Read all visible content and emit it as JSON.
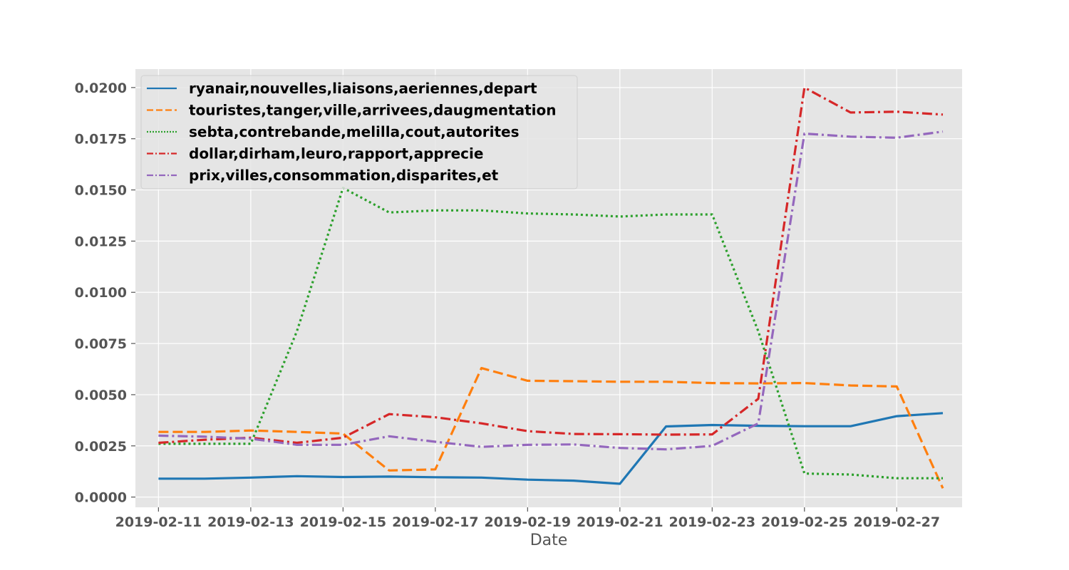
{
  "chart_data": {
    "type": "line",
    "title": "",
    "xlabel": "Date",
    "ylabel": "",
    "x": [
      "2019-02-11",
      "2019-02-12",
      "2019-02-13",
      "2019-02-14",
      "2019-02-15",
      "2019-02-16",
      "2019-02-17",
      "2019-02-18",
      "2019-02-19",
      "2019-02-20",
      "2019-02-21",
      "2019-02-22",
      "2019-02-23",
      "2019-02-24",
      "2019-02-25",
      "2019-02-26",
      "2019-02-27",
      "2019-02-28"
    ],
    "xticks": [
      "2019-02-11",
      "2019-02-13",
      "2019-02-15",
      "2019-02-17",
      "2019-02-19",
      "2019-02-21",
      "2019-02-23",
      "2019-02-25",
      "2019-02-27"
    ],
    "xlim": [
      "2019-02-10T12:00",
      "2019-02-28T10:00"
    ],
    "ylim": [
      -0.0005,
      0.0209
    ],
    "yticks": [
      "0.0000",
      "0.0025",
      "0.0050",
      "0.0075",
      "0.0100",
      "0.0125",
      "0.0150",
      "0.0175",
      "0.0200"
    ],
    "grid": true,
    "legend_position": "upper-left",
    "background": "#e5e5e5",
    "series": [
      {
        "name": "ryanair,nouvelles,liaisons,aeriennes,depart",
        "color": "#1f77b4",
        "dash": "solid",
        "values": [
          0.0009,
          0.0009,
          0.00095,
          0.00102,
          0.00098,
          0.001,
          0.00097,
          0.00095,
          0.00085,
          0.0008,
          0.00065,
          0.00345,
          0.00352,
          0.00348,
          0.00346,
          0.00346,
          0.00395,
          0.0041
        ]
      },
      {
        "name": "touristes,tanger,ville,arrivees,daugmentation",
        "color": "#ff7f0e",
        "dash": "dashed",
        "values": [
          0.00318,
          0.00318,
          0.00325,
          0.00318,
          0.0031,
          0.0013,
          0.00135,
          0.0063,
          0.00568,
          0.00566,
          0.00563,
          0.00563,
          0.00557,
          0.00555,
          0.00557,
          0.00545,
          0.0054,
          0.00043
        ]
      },
      {
        "name": "sebta,contrebande,melilla,cout,autorites",
        "color": "#2ca02c",
        "dash": "dotted",
        "values": [
          0.0026,
          0.0026,
          0.0026,
          0.0081,
          0.0151,
          0.0139,
          0.014,
          0.014,
          0.01385,
          0.0138,
          0.0137,
          0.0138,
          0.0138,
          0.0081,
          0.00115,
          0.0011,
          0.00092,
          0.00092
        ]
      },
      {
        "name": "dollar,dirham,leuro,rapport,apprecie",
        "color": "#d62728",
        "dash": "dashdot",
        "values": [
          0.00265,
          0.0028,
          0.0029,
          0.00265,
          0.0029,
          0.00405,
          0.0039,
          0.0036,
          0.00322,
          0.00308,
          0.00307,
          0.00305,
          0.00306,
          0.0048,
          0.02,
          0.01878,
          0.01882,
          0.01868
        ]
      },
      {
        "name": "prix,villes,consommation,disparites,et",
        "color": "#9467bd",
        "dash": "dashdot",
        "values": [
          0.003,
          0.00295,
          0.00285,
          0.00255,
          0.00255,
          0.00297,
          0.0027,
          0.00245,
          0.00255,
          0.00257,
          0.0024,
          0.00233,
          0.0025,
          0.0036,
          0.01775,
          0.0176,
          0.01755,
          0.01785
        ]
      }
    ]
  }
}
